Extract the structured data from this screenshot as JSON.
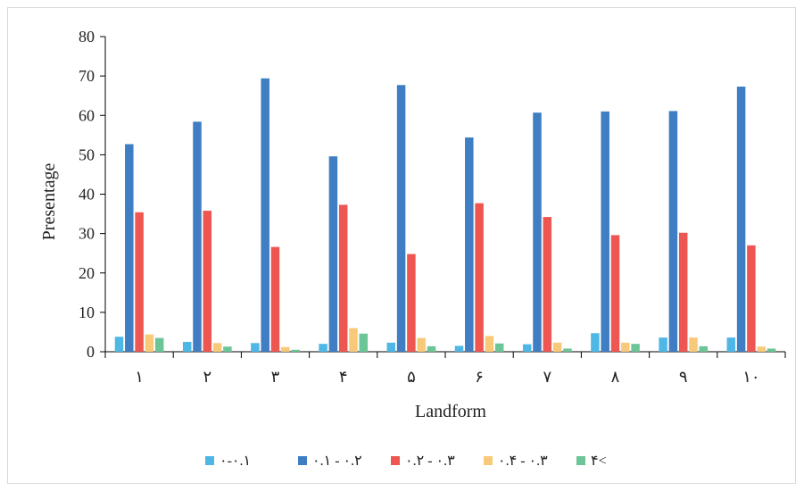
{
  "chart_data": {
    "type": "bar",
    "title": "",
    "xlabel": "Landform",
    "ylabel": "Presentage",
    "ylim": [
      0,
      80
    ],
    "yticks": [
      0,
      10,
      20,
      30,
      40,
      50,
      60,
      70,
      80
    ],
    "categories": [
      "١",
      "٢",
      "٣",
      "۴",
      "۵",
      "۶",
      "٧",
      "٨",
      "٩",
      "١٠"
    ],
    "series": [
      {
        "name": "٠.١-٠",
        "color": "#4fb7e6",
        "values": [
          3.8,
          2.5,
          2.2,
          2.0,
          2.3,
          1.5,
          1.9,
          4.7,
          3.6,
          3.6
        ]
      },
      {
        "name": "٠.٢ - ٠.١",
        "color": "#3f7ec2",
        "values": [
          52.7,
          58.4,
          69.4,
          49.6,
          67.7,
          54.4,
          60.7,
          61.0,
          61.1,
          67.3
        ]
      },
      {
        "name": "٠.٣ - ٠.٢",
        "color": "#ee5652",
        "values": [
          35.4,
          35.8,
          26.6,
          37.3,
          24.8,
          37.7,
          34.2,
          29.6,
          30.2,
          27.0
        ]
      },
      {
        "name": "٠.۴ - ٠.٣",
        "color": "#f8c979",
        "values": [
          4.4,
          2.2,
          1.2,
          6.0,
          3.5,
          4.0,
          2.3,
          2.3,
          3.6,
          1.3
        ]
      },
      {
        "name": "۴<",
        "color": "#6cc596",
        "values": [
          3.5,
          1.3,
          0.5,
          4.6,
          1.4,
          2.1,
          0.8,
          2.0,
          1.4,
          0.8
        ]
      }
    ],
    "grid": false,
    "legend_position": "bottom"
  }
}
